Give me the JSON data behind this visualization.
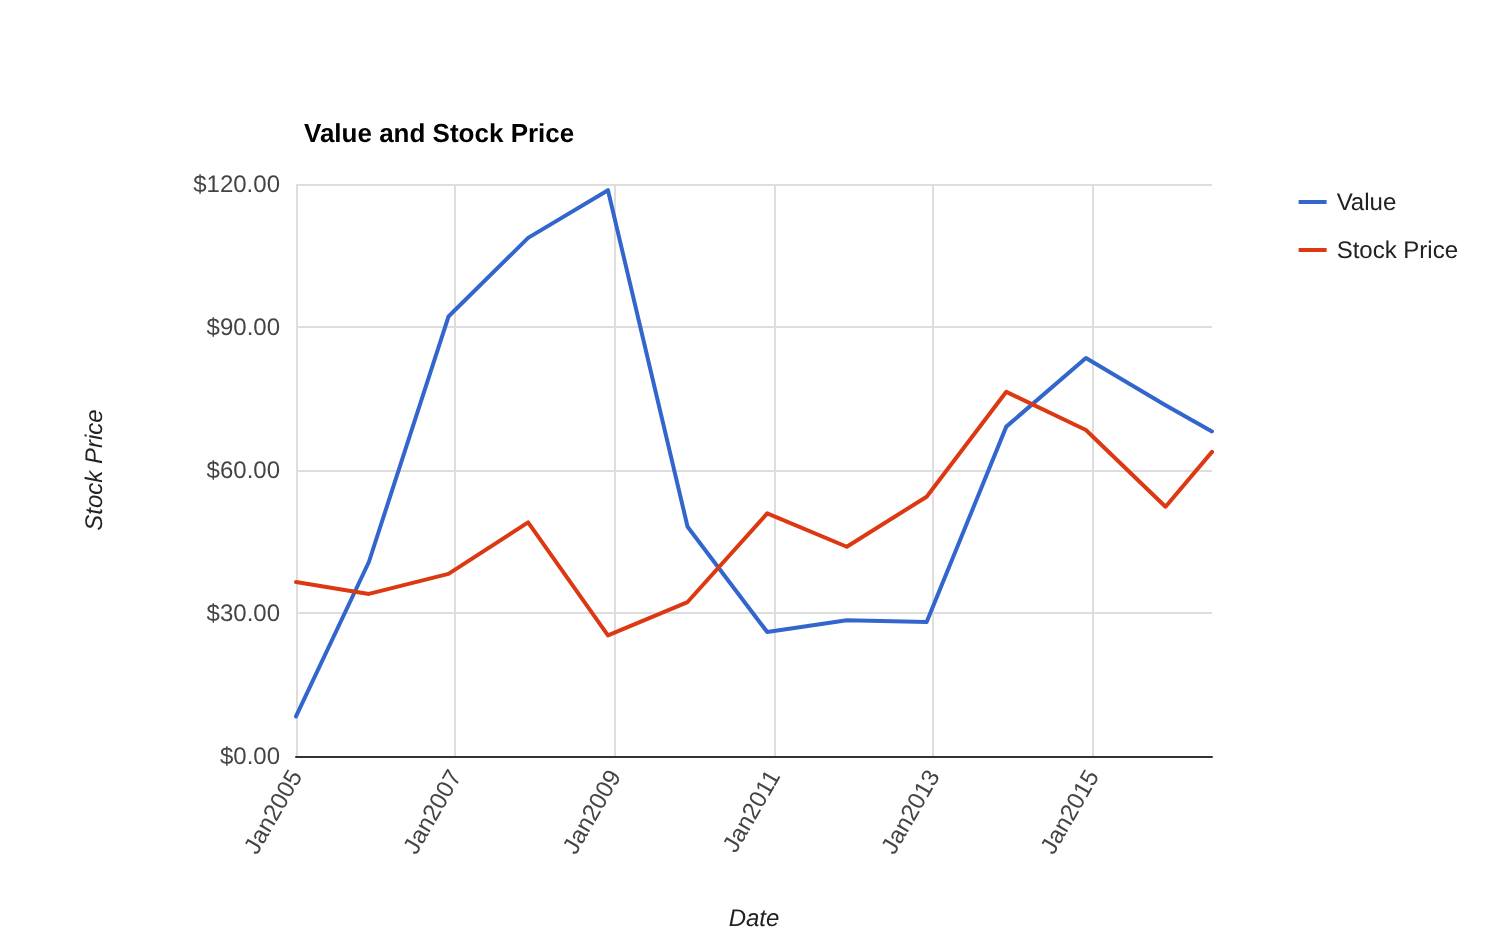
{
  "chart_data": {
    "type": "line",
    "title": "Value and Stock Price",
    "xlabel": "Date",
    "ylabel": "Stock Price",
    "x": [
      "2005-01",
      "2005-12",
      "2006-12",
      "2007-12",
      "2008-12",
      "2009-12",
      "2010-12",
      "2011-12",
      "2012-12",
      "2013-12",
      "2014-12",
      "2015-12",
      "2016-07"
    ],
    "series": [
      {
        "name": "Value",
        "color": "#3366cc",
        "values": [
          8.3,
          40.7,
          92.2,
          108.7,
          118.7,
          48.1,
          26,
          28.5,
          28.1,
          69.1,
          83.5,
          73.6,
          68.1
        ]
      },
      {
        "name": "Stock Price",
        "color": "#dc3912",
        "values": [
          36.5,
          34,
          38.2,
          49,
          25.3,
          32.3,
          50.9,
          43.9,
          54.4,
          76.4,
          68.4,
          52.3,
          63.8
        ]
      }
    ],
    "xlim": [
      "2005-01",
      "2016-07"
    ],
    "xticks": [
      {
        "value": "2005-01",
        "label": "Jan2005"
      },
      {
        "value": "2007-01",
        "label": "Jan2007"
      },
      {
        "value": "2009-01",
        "label": "Jan2009"
      },
      {
        "value": "2011-01",
        "label": "Jan2011"
      },
      {
        "value": "2013-01",
        "label": "Jan2013"
      },
      {
        "value": "2015-01",
        "label": "Jan2015"
      }
    ],
    "ylim": [
      0,
      120
    ],
    "yticks": [
      {
        "value": 0,
        "label": "$0.00"
      },
      {
        "value": 30,
        "label": "$30.00"
      },
      {
        "value": 60,
        "label": "$60.00"
      },
      {
        "value": 90,
        "label": "$90.00"
      },
      {
        "value": 120,
        "label": "$120.00"
      }
    ],
    "grid": true,
    "legend": "top right",
    "marker": "none",
    "line_style": "solid"
  }
}
